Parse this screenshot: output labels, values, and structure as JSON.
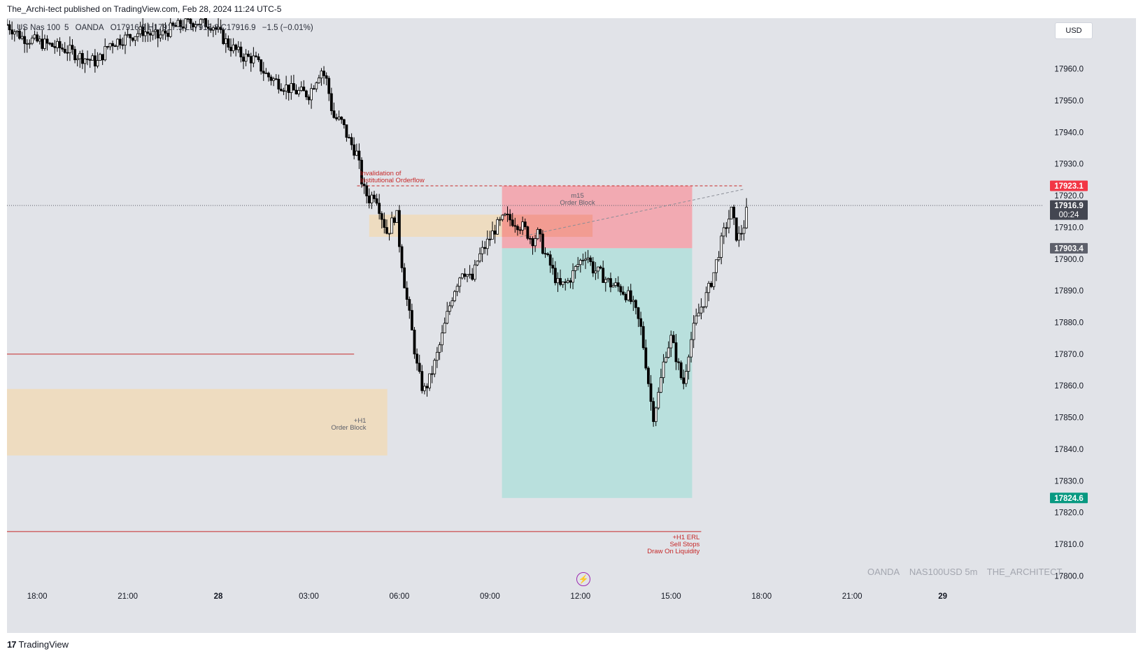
{
  "header": {
    "published": "The_Archi-tect published on TradingView.com, Feb 28, 2024 11:24 UTC-5"
  },
  "legend": {
    "symbol": "US Nas 100",
    "interval": "5",
    "broker": "OANDA",
    "ohlc_text": "O17916.8 H17917.5 L17915.8 C17916.9",
    "change": "−1.5 (−0.01%)"
  },
  "currency_button": "USD",
  "watermark": {
    "broker": "OANDA",
    "symbol": "NAS100USD 5m",
    "author": "THE_ARCHITECT"
  },
  "footer": {
    "brand": "TradingView",
    "logo": "17"
  },
  "chart_data": {
    "type": "candlestick",
    "y_ticks": [
      "17960.0",
      "17950.0",
      "17940.0",
      "17930.0",
      "17920.0",
      "17910.0",
      "17900.0",
      "17890.0",
      "17880.0",
      "17870.0",
      "17860.0",
      "17850.0",
      "17840.0",
      "17830.0",
      "17820.0",
      "17810.0",
      "17800.0"
    ],
    "y_tick_values": [
      17960,
      17950,
      17940,
      17930,
      17920,
      17910,
      17900,
      17890,
      17880,
      17870,
      17860,
      17850,
      17840,
      17830,
      17820,
      17810,
      17800
    ],
    "x_ticks": [
      {
        "label": "18:00",
        "t": -6
      },
      {
        "label": "21:00",
        "t": -3
      },
      {
        "label": "28",
        "t": 0
      },
      {
        "label": "03:00",
        "t": 3
      },
      {
        "label": "06:00",
        "t": 6
      },
      {
        "label": "09:00",
        "t": 9
      },
      {
        "label": "12:00",
        "t": 12
      },
      {
        "label": "15:00",
        "t": 15
      },
      {
        "label": "18:00",
        "t": 18
      },
      {
        "label": "21:00",
        "t": 21
      },
      {
        "label": "29",
        "t": 24
      }
    ],
    "x_range_hours": [
      -7.0,
      27.3
    ],
    "y_range": [
      17797,
      17976
    ],
    "close_path": [
      [
        -7.0,
        17974
      ],
      [
        -6.5,
        17970
      ],
      [
        -5.8,
        17968
      ],
      [
        -5.0,
        17966
      ],
      [
        -4.6,
        17964
      ],
      [
        -4.0,
        17962
      ],
      [
        -3.6,
        17968
      ],
      [
        -3.0,
        17970
      ],
      [
        -2.5,
        17972
      ],
      [
        -2.0,
        17970
      ],
      [
        -1.5,
        17973
      ],
      [
        -0.8,
        17975
      ],
      [
        -0.2,
        17974
      ],
      [
        0.3,
        17968
      ],
      [
        0.8,
        17964
      ],
      [
        1.2,
        17963
      ],
      [
        1.6,
        17958
      ],
      [
        2.1,
        17955
      ],
      [
        2.5,
        17953
      ],
      [
        3.0,
        17952
      ],
      [
        3.4,
        17960
      ],
      [
        3.6,
        17956
      ],
      [
        3.8,
        17945
      ],
      [
        4.1,
        17943
      ],
      [
        4.3,
        17938
      ],
      [
        4.6,
        17933
      ],
      [
        4.8,
        17922
      ],
      [
        5.0,
        17919
      ],
      [
        5.2,
        17921
      ],
      [
        5.4,
        17914
      ],
      [
        5.6,
        17908
      ],
      [
        5.9,
        17915
      ],
      [
        6.0,
        17905
      ],
      [
        6.2,
        17890
      ],
      [
        6.4,
        17878
      ],
      [
        6.6,
        17865
      ],
      [
        6.8,
        17858
      ],
      [
        7.0,
        17862
      ],
      [
        7.2,
        17868
      ],
      [
        7.4,
        17875
      ],
      [
        7.6,
        17883
      ],
      [
        7.8,
        17890
      ],
      [
        8.1,
        17897
      ],
      [
        8.4,
        17893
      ],
      [
        8.6,
        17900
      ],
      [
        8.9,
        17905
      ],
      [
        9.2,
        17910
      ],
      [
        9.5,
        17913
      ],
      [
        9.8,
        17912
      ],
      [
        10.1,
        17910
      ],
      [
        10.4,
        17906
      ],
      [
        10.6,
        17908
      ],
      [
        10.8,
        17902
      ],
      [
        11.0,
        17898
      ],
      [
        11.3,
        17891
      ],
      [
        11.6,
        17893
      ],
      [
        11.9,
        17898
      ],
      [
        12.2,
        17902
      ],
      [
        12.4,
        17897
      ],
      [
        12.7,
        17895
      ],
      [
        13.0,
        17892
      ],
      [
        13.3,
        17891
      ],
      [
        13.6,
        17888
      ],
      [
        13.8,
        17884
      ],
      [
        14.0,
        17878
      ],
      [
        14.2,
        17865
      ],
      [
        14.4,
        17850
      ],
      [
        14.6,
        17858
      ],
      [
        14.8,
        17870
      ],
      [
        15.0,
        17875
      ],
      [
        15.2,
        17868
      ],
      [
        15.4,
        17860
      ],
      [
        15.6,
        17872
      ],
      [
        15.8,
        17880
      ],
      [
        16.0,
        17885
      ],
      [
        16.2,
        17889
      ],
      [
        16.4,
        17895
      ],
      [
        16.6,
        17903
      ],
      [
        16.8,
        17910
      ],
      [
        17.0,
        17915
      ],
      [
        17.2,
        17906
      ],
      [
        17.4,
        17910
      ],
      [
        17.55,
        17917
      ]
    ],
    "current_price": "17916.9",
    "countdown": "00:24",
    "price_labels": [
      {
        "value": 17923.1,
        "text": "17923.1",
        "color": "#f23645"
      },
      {
        "value": 17916.9,
        "text": "17916.9",
        "color": "#434651"
      },
      {
        "value": 17903.4,
        "text": "17903.4",
        "color": "#5d606b"
      },
      {
        "value": 17824.6,
        "text": "17824.6",
        "color": "#089981"
      }
    ],
    "zones": [
      {
        "name": "H1 Order Block",
        "y1": 17859,
        "y2": 17838,
        "x1": -7.0,
        "x2": 5.6,
        "color": "#f0dbb8"
      },
      {
        "name": "Upper Order Block",
        "y1": 17914,
        "y2": 17907,
        "x1": 5.0,
        "x2": 10.0,
        "color": "#f0dbb8"
      },
      {
        "name": "Short stop zone",
        "y1": 17923.1,
        "y2": 17903.4,
        "x1": 9.4,
        "x2": 15.7,
        "color": "#f5a0a8"
      },
      {
        "name": "Short target zone",
        "y1": 17903.4,
        "y2": 17824.6,
        "x1": 9.4,
        "x2": 15.7,
        "color": "#b2dfda"
      },
      {
        "name": "m15 Order Block",
        "y1": 17914,
        "y2": 17907,
        "x1": 9.4,
        "x2": 12.4,
        "color": "#f29a8c"
      }
    ],
    "lines": [
      {
        "name": "upper red level",
        "y": 17870,
        "x1": -7.0,
        "x2": 4.5,
        "color": "#c62828"
      },
      {
        "name": "ERL level",
        "y": 17814,
        "x1": -7.0,
        "x2": 16.0,
        "color": "#c62828"
      }
    ],
    "annotations": {
      "invalidation": [
        "Invalidation of",
        "Institutional Orderflow"
      ],
      "m15_ob": [
        "m15",
        "Order Block"
      ],
      "h1_ob": [
        "+H1",
        "Order Block"
      ],
      "erl": [
        "+H1 ERL",
        "Sell Stops",
        "Draw On Liquidity"
      ]
    },
    "invalidation_level": 17923.1,
    "grid": false
  }
}
